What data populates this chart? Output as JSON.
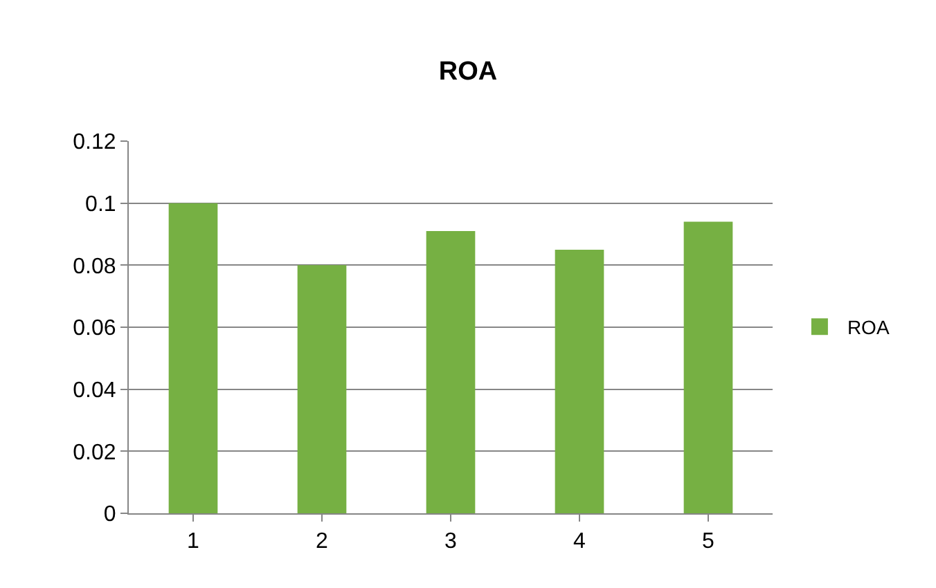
{
  "chart_data": {
    "type": "bar",
    "title": "ROA",
    "categories": [
      "1",
      "2",
      "3",
      "4",
      "5"
    ],
    "series": [
      {
        "name": "ROA",
        "color": "#76b043",
        "values": [
          0.1,
          0.08,
          0.091,
          0.085,
          0.094
        ]
      }
    ],
    "ylim": [
      0,
      0.12
    ],
    "yticks": [
      0,
      0.02,
      0.04,
      0.06,
      0.08,
      0.1,
      0.12
    ],
    "grid": "y",
    "legend": "right"
  }
}
